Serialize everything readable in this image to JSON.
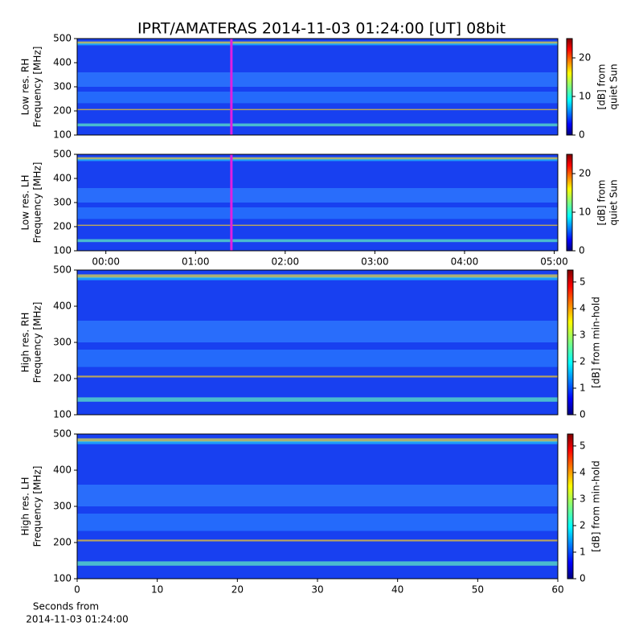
{
  "title": "IPRT/AMATERAS 2014-11-03 01:24:00 [UT]   08bit",
  "chart_data": [
    {
      "type": "heatmap",
      "ylabel": [
        "Low res. RH",
        "Frequency [MHz]"
      ],
      "ylim": [
        100,
        500
      ],
      "yticks": [
        100,
        200,
        300,
        400,
        500
      ],
      "xlim": [
        -0.32,
        5.04
      ],
      "marker_x": 1.4,
      "marker_color": "#e020e0",
      "colorbar_label": [
        "[dB] from",
        "quiet Sun"
      ],
      "clim": [
        0,
        25
      ],
      "cticks": [
        0,
        10,
        20
      ]
    },
    {
      "type": "heatmap",
      "ylabel": [
        "Low res. LH",
        "Frequency [MHz]"
      ],
      "ylim": [
        100,
        500
      ],
      "yticks": [
        100,
        200,
        300,
        400,
        500
      ],
      "xlim": [
        -0.32,
        5.04
      ],
      "marker_x": 1.4,
      "marker_color": "#e020e0",
      "xticks": [
        {
          "value": 0,
          "label": "00:00"
        },
        {
          "value": 1,
          "label": "01:00"
        },
        {
          "value": 2,
          "label": "02:00"
        },
        {
          "value": 3,
          "label": "03:00"
        },
        {
          "value": 4,
          "label": "04:00"
        },
        {
          "value": 5,
          "label": "05:00"
        }
      ],
      "colorbar_label": [
        "[dB] from",
        "quiet Sun"
      ],
      "clim": [
        0,
        25
      ],
      "cticks": [
        0,
        10,
        20
      ]
    },
    {
      "type": "heatmap",
      "ylabel": [
        "High res. RH",
        "Frequency [MHz]"
      ],
      "ylim": [
        100,
        500
      ],
      "yticks": [
        100,
        200,
        300,
        400,
        500
      ],
      "xlim": [
        0,
        60
      ],
      "colorbar_label": [
        "[dB] from min-hold"
      ],
      "clim": [
        0,
        5.45
      ],
      "cticks": [
        0,
        1,
        2,
        3,
        4,
        5
      ]
    },
    {
      "type": "heatmap",
      "ylabel": [
        "High res. LH",
        "Frequency [MHz]"
      ],
      "ylim": [
        100,
        500
      ],
      "yticks": [
        100,
        200,
        300,
        400,
        500
      ],
      "xlim": [
        0,
        60
      ],
      "xticks": [
        0,
        10,
        20,
        30,
        40,
        50,
        60
      ],
      "xlabel": [
        "Seconds from",
        "2014-11-03 01:24:00"
      ],
      "colorbar_label": [
        "[dB] from min-hold"
      ],
      "clim": [
        0,
        5.45
      ],
      "cticks": [
        0,
        1,
        2,
        3,
        4,
        5
      ]
    }
  ]
}
